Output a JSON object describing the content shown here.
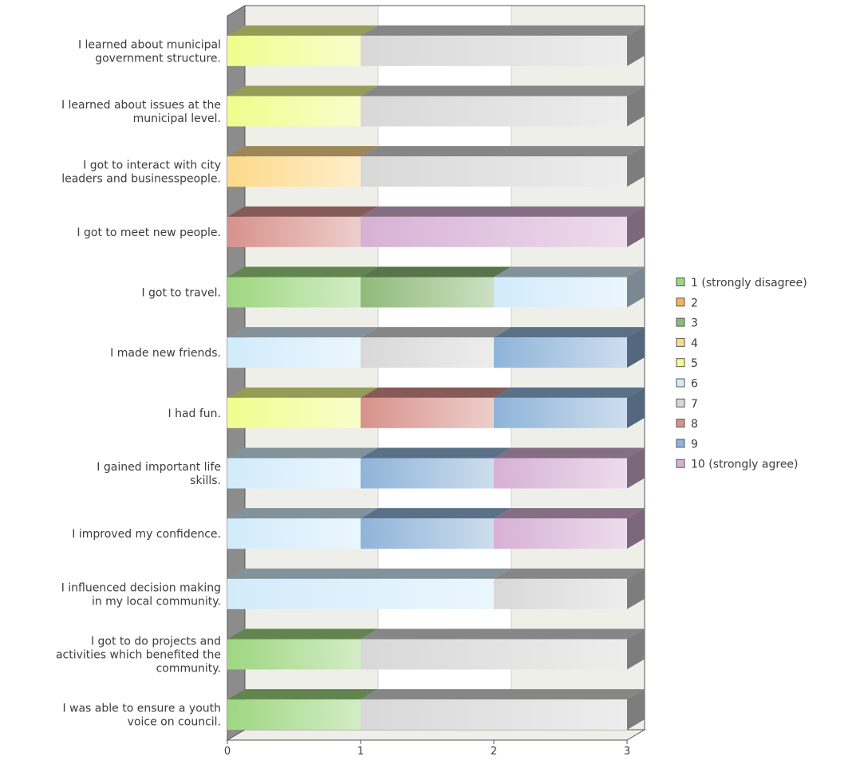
{
  "chart_data": {
    "type": "bar",
    "orientation": "horizontal",
    "stacked": true,
    "three_d": true,
    "categories": [
      [
        "I learned about municipal",
        "government structure."
      ],
      [
        "I learned about issues at the",
        "municipal level."
      ],
      [
        "I got to interact with city",
        "leaders and businesspeople."
      ],
      [
        "I got to meet new people."
      ],
      [
        "I got to travel."
      ],
      [
        "I made new friends."
      ],
      [
        "I had fun."
      ],
      [
        "I gained important life",
        "skills."
      ],
      [
        "I improved my confidence."
      ],
      [
        "I influenced decision making",
        "in my local community."
      ],
      [
        "I got to do projects and",
        "activities which benefited the",
        "community."
      ],
      [
        "I was able to ensure a youth",
        "voice on council."
      ]
    ],
    "series": [
      {
        "name": "1 (strongly disagree)",
        "color": "#9ed780",
        "values": [
          0,
          0,
          0,
          0,
          1,
          0,
          0,
          0,
          0,
          0,
          1,
          1
        ]
      },
      {
        "name": "2",
        "color": "#f5b25a",
        "values": [
          0,
          0,
          0,
          0,
          0,
          0,
          0,
          0,
          0,
          0,
          0,
          0
        ]
      },
      {
        "name": "3",
        "color": "#8fba79",
        "values": [
          0,
          0,
          0,
          0,
          1,
          0,
          0,
          0,
          0,
          0,
          0,
          0
        ]
      },
      {
        "name": "4",
        "color": "#fdd98a",
        "values": [
          0,
          0,
          1,
          0,
          0,
          0,
          0,
          0,
          0,
          0,
          0,
          0
        ]
      },
      {
        "name": "5",
        "color": "#eefd8c",
        "values": [
          1,
          1,
          0,
          0,
          0,
          0,
          1,
          0,
          0,
          0,
          0,
          0
        ]
      },
      {
        "name": "6",
        "color": "#d2ebfa",
        "values": [
          0,
          0,
          0,
          0,
          1,
          1,
          0,
          1,
          1,
          2,
          0,
          0
        ]
      },
      {
        "name": "7",
        "color": "#d8d8d8",
        "values": [
          2,
          2,
          2,
          0,
          0,
          1,
          0,
          0,
          0,
          1,
          2,
          2
        ]
      },
      {
        "name": "8",
        "color": "#d8928c",
        "values": [
          0,
          0,
          0,
          1,
          0,
          0,
          1,
          0,
          0,
          0,
          0,
          0
        ]
      },
      {
        "name": "9",
        "color": "#8fb4d9",
        "values": [
          0,
          0,
          0,
          0,
          0,
          1,
          1,
          1,
          1,
          0,
          0,
          0
        ]
      },
      {
        "name": "10 (strongly agree)",
        "color": "#d7b1d5",
        "values": [
          0,
          0,
          0,
          2,
          0,
          0,
          0,
          1,
          1,
          0,
          0,
          0
        ]
      }
    ],
    "xlim": [
      0,
      3
    ],
    "xticks": [
      "0",
      "1",
      "2",
      "3"
    ],
    "grid": true,
    "legend": "right"
  }
}
